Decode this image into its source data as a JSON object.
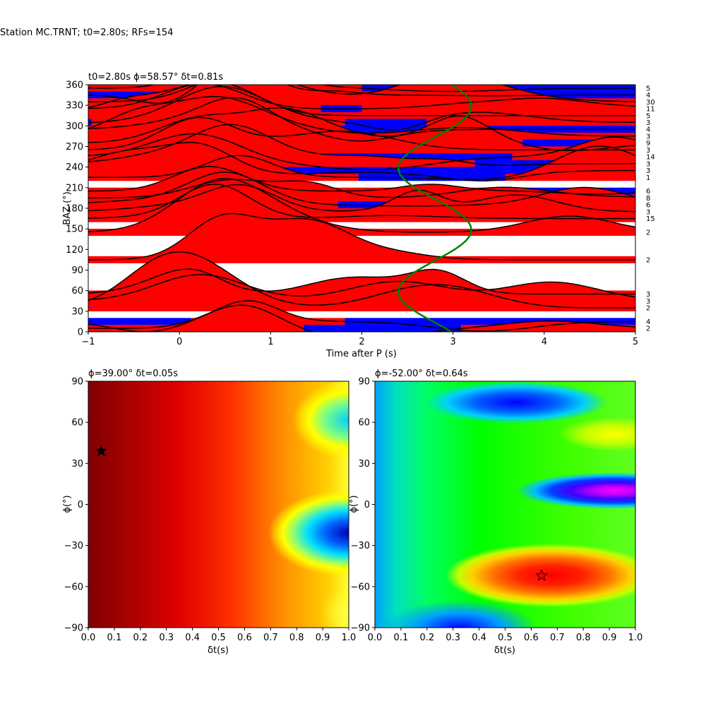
{
  "suptitle": "Station MC.TRNT; t0=2.80s; RFs=154",
  "chart_data": [
    {
      "type": "line",
      "title": "t0=2.80s ϕ=58.57° δt=0.81s",
      "xlabel": "Time after P (s)",
      "ylabel": "BAZ (°)",
      "xlim": [
        -1,
        5
      ],
      "ylim": [
        0,
        360
      ],
      "xticks": [
        "−1",
        "0",
        "1",
        "2",
        "3",
        "4",
        "5"
      ],
      "yticks": [
        "0",
        "30",
        "60",
        "90",
        "120",
        "150",
        "180",
        "210",
        "240",
        "270",
        "300",
        "330",
        "360"
      ],
      "fill_colors": {
        "positive": "#ff0000",
        "negative": "#0000ff"
      },
      "curve_color": "#008000",
      "right_labels": [
        {
          "baz": 355,
          "count": "5"
        },
        {
          "baz": 345,
          "count": "4"
        },
        {
          "baz": 335,
          "count": "30"
        },
        {
          "baz": 325,
          "count": "11"
        },
        {
          "baz": 315,
          "count": "5"
        },
        {
          "baz": 305,
          "count": "3"
        },
        {
          "baz": 295,
          "count": "4"
        },
        {
          "baz": 285,
          "count": "3"
        },
        {
          "baz": 275,
          "count": "9"
        },
        {
          "baz": 265,
          "count": "3"
        },
        {
          "baz": 255,
          "count": "14"
        },
        {
          "baz": 245,
          "count": "3"
        },
        {
          "baz": 235,
          "count": "3"
        },
        {
          "baz": 225,
          "count": "1"
        },
        {
          "baz": 205,
          "count": "6"
        },
        {
          "baz": 195,
          "count": "8"
        },
        {
          "baz": 185,
          "count": "6"
        },
        {
          "baz": 175,
          "count": "3"
        },
        {
          "baz": 165,
          "count": "15"
        },
        {
          "baz": 145,
          "count": "2"
        },
        {
          "baz": 105,
          "count": "2"
        },
        {
          "baz": 55,
          "count": "3"
        },
        {
          "baz": 45,
          "count": "3"
        },
        {
          "baz": 35,
          "count": "2"
        },
        {
          "baz": 15,
          "count": "4"
        },
        {
          "baz": 5,
          "count": "2"
        }
      ]
    },
    {
      "type": "heatmap",
      "title": "ϕ=39.00° δt=0.05s",
      "xlabel": "δt(s)",
      "ylabel": "ϕ(°)",
      "xlim": [
        0.0,
        1.0
      ],
      "ylim": [
        -90,
        90
      ],
      "xticks": [
        "0.0",
        "0.1",
        "0.2",
        "0.3",
        "0.4",
        "0.5",
        "0.6",
        "0.7",
        "0.8",
        "0.9",
        "1.0"
      ],
      "yticks": [
        "−90",
        "−60",
        "−30",
        "0",
        "30",
        "60",
        "90"
      ],
      "star": {
        "dt": 0.05,
        "phi": 39,
        "color": "#000000"
      },
      "colormap": "jet"
    },
    {
      "type": "heatmap",
      "title": "ϕ=-52.00° δt=0.64s",
      "xlabel": "δt(s)",
      "ylabel": "ϕ(°)",
      "xlim": [
        0.0,
        1.0
      ],
      "ylim": [
        -90,
        90
      ],
      "xticks": [
        "0.0",
        "0.1",
        "0.2",
        "0.3",
        "0.4",
        "0.5",
        "0.6",
        "0.7",
        "0.8",
        "0.9",
        "1.0"
      ],
      "yticks": [
        "−90",
        "−60",
        "−30",
        "0",
        "30",
        "60",
        "90"
      ],
      "star": {
        "dt": 0.64,
        "phi": -52,
        "color": "#ff0000"
      },
      "colormap": "gist_rainbow"
    }
  ]
}
